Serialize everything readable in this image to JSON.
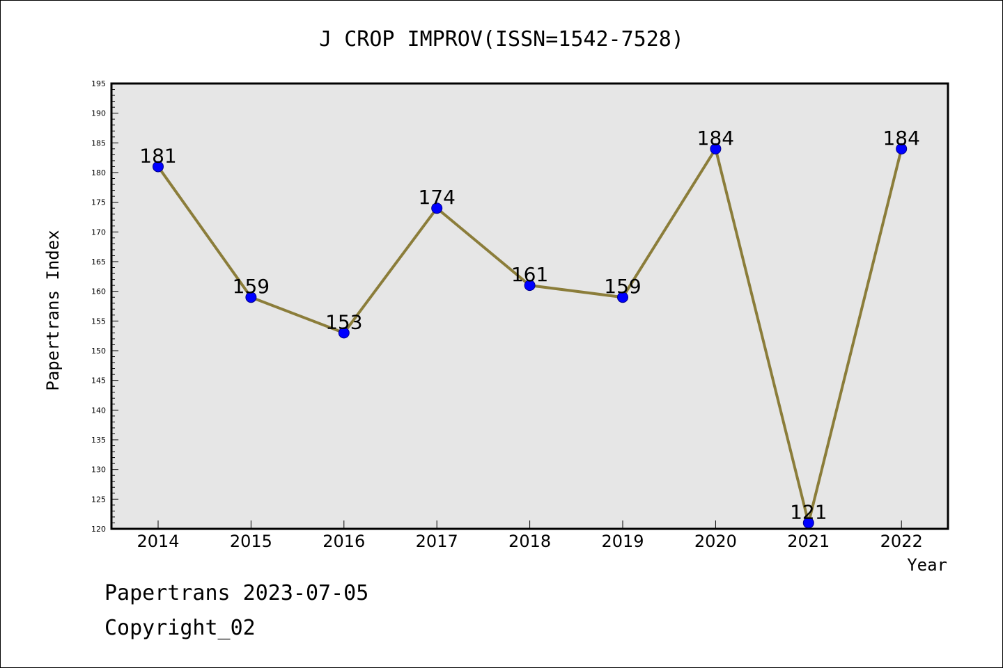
{
  "chart_data": {
    "type": "line",
    "title": "J CROP IMPROV(ISSN=1542-7528)",
    "xlabel": "Year",
    "ylabel": "Papertrans Index",
    "categories": [
      "2014",
      "2015",
      "2016",
      "2017",
      "2018",
      "2019",
      "2020",
      "2021",
      "2022"
    ],
    "series": [
      {
        "values": [
          181,
          159,
          153,
          174,
          161,
          159,
          184,
          121,
          184
        ]
      }
    ],
    "ylim": [
      120,
      195
    ],
    "yticks": [
      120,
      125,
      130,
      135,
      140,
      145,
      150,
      155,
      160,
      165,
      170,
      175,
      180,
      185,
      190,
      195
    ],
    "grid": false,
    "data_labels": true,
    "colors": {
      "line": "#8b7d3a",
      "marker": "#0000ff",
      "plot_background": "#e6e6e6"
    }
  },
  "footer": {
    "source": "Papertrans 2023-07-05",
    "copyright": "Copyright_02"
  }
}
